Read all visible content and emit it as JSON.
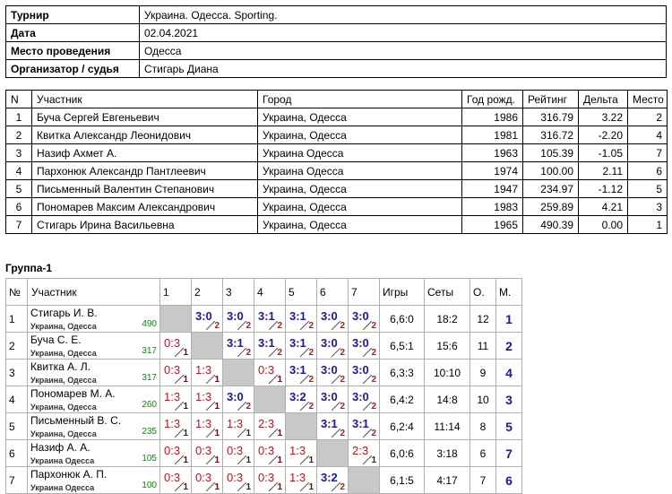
{
  "info": {
    "rows": [
      [
        "Турнир",
        "Украина. Одесса. Sporting."
      ],
      [
        "Дата",
        "02.04.2021"
      ],
      [
        "Место проведения",
        "Одесса"
      ],
      [
        "Организатор / судья",
        "Стигарь Диана"
      ]
    ]
  },
  "players": {
    "header": [
      "N",
      "Участник",
      "Город",
      "Год рожд.",
      "Рейтинг",
      "Дельта",
      "Место"
    ],
    "rows": [
      [
        "1",
        "Буча Сергей Евгеньевич",
        "Украина, Одесса",
        "1986",
        "316.79",
        "3.22",
        "2"
      ],
      [
        "2",
        "Квитка Александр Леонидович",
        "Украина, Одесса",
        "1981",
        "316.72",
        "-2.20",
        "4"
      ],
      [
        "3",
        "Назиф Ахмет А.",
        "Украина Одесса",
        "1963",
        "105.39",
        "-1.05",
        "7"
      ],
      [
        "4",
        "Пархонюк Александр Пантлеевич",
        "Украина Одесса",
        "1974",
        "100.00",
        "2.11",
        "6"
      ],
      [
        "5",
        "Письменный Валентин Степанович",
        "Украина, Одесса",
        "1947",
        "234.97",
        "-1.12",
        "5"
      ],
      [
        "6",
        "Пономарев Максим Александрович",
        "Украина, Одесса",
        "1983",
        "259.89",
        "4.21",
        "3"
      ],
      [
        "7",
        "Стигарь Ирина Васильевна",
        "Украина, Одесса",
        "1965",
        "490.39",
        "0.00",
        "1"
      ]
    ]
  },
  "group": {
    "title": "Группа-1",
    "header": [
      "№",
      "Участник",
      "1",
      "2",
      "3",
      "4",
      "5",
      "6",
      "7",
      "Игры",
      "Сеты",
      "О.",
      "М."
    ],
    "rows": [
      {
        "n": "1",
        "name": "Стигарь И. В.",
        "city": "Украина, Одесса",
        "rating": "490",
        "results": [
          null,
          {
            "score": "3:0",
            "points": "2"
          },
          {
            "score": "3:0",
            "points": "2"
          },
          {
            "score": "3:1",
            "points": "2"
          },
          {
            "score": "3:1",
            "points": "2"
          },
          {
            "score": "3:0",
            "points": "2"
          },
          {
            "score": "3:0",
            "points": "2"
          }
        ],
        "games": "6,6:0",
        "sets": "18:2",
        "total": "12",
        "place": "1"
      },
      {
        "n": "2",
        "name": "Буча С. Е.",
        "city": "Украина, Одесса",
        "rating": "317",
        "results": [
          {
            "score": "0:3",
            "points": "1"
          },
          null,
          {
            "score": "3:1",
            "points": "2"
          },
          {
            "score": "3:1",
            "points": "2"
          },
          {
            "score": "3:1",
            "points": "2"
          },
          {
            "score": "3:0",
            "points": "2"
          },
          {
            "score": "3:0",
            "points": "2"
          }
        ],
        "games": "6,5:1",
        "sets": "15:6",
        "total": "11",
        "place": "2"
      },
      {
        "n": "3",
        "name": "Квитка А. Л.",
        "city": "Украина, Одесса",
        "rating": "317",
        "results": [
          {
            "score": "0:3",
            "points": "1"
          },
          {
            "score": "1:3",
            "points": "1"
          },
          null,
          {
            "score": "0:3",
            "points": "1"
          },
          {
            "score": "3:1",
            "points": "2"
          },
          {
            "score": "3:0",
            "points": "2"
          },
          {
            "score": "3:0",
            "points": "2"
          }
        ],
        "games": "6,3:3",
        "sets": "10:10",
        "total": "9",
        "place": "4"
      },
      {
        "n": "4",
        "name": "Пономарев М. А.",
        "city": "Украина, Одесса",
        "rating": "260",
        "results": [
          {
            "score": "1:3",
            "points": "1"
          },
          {
            "score": "1:3",
            "points": "1"
          },
          {
            "score": "3:0",
            "points": "2"
          },
          null,
          {
            "score": "3:2",
            "points": "2"
          },
          {
            "score": "3:0",
            "points": "2"
          },
          {
            "score": "3:0",
            "points": "2"
          }
        ],
        "games": "6,4:2",
        "sets": "14:8",
        "total": "10",
        "place": "3"
      },
      {
        "n": "5",
        "name": "Письменный В. С.",
        "city": "Украина, Одесса",
        "rating": "235",
        "results": [
          {
            "score": "1:3",
            "points": "1"
          },
          {
            "score": "1:3",
            "points": "1"
          },
          {
            "score": "1:3",
            "points": "1"
          },
          {
            "score": "2:3",
            "points": "1"
          },
          null,
          {
            "score": "3:1",
            "points": "2"
          },
          {
            "score": "3:1",
            "points": "2"
          }
        ],
        "games": "6,2:4",
        "sets": "11:14",
        "total": "8",
        "place": "5"
      },
      {
        "n": "6",
        "name": "Назиф А. А.",
        "city": "Украина Одесса",
        "rating": "105",
        "results": [
          {
            "score": "0:3",
            "points": "1"
          },
          {
            "score": "0:3",
            "points": "1"
          },
          {
            "score": "0:3",
            "points": "1"
          },
          {
            "score": "0:3",
            "points": "1"
          },
          {
            "score": "1:3",
            "points": "1"
          },
          null,
          {
            "score": "2:3",
            "points": "1"
          }
        ],
        "games": "6,0:6",
        "sets": "3:18",
        "total": "6",
        "place": "7"
      },
      {
        "n": "7",
        "name": "Пархонюк А. П.",
        "city": "Украина Одесса",
        "rating": "100",
        "results": [
          {
            "score": "0:3",
            "points": "1"
          },
          {
            "score": "0:3",
            "points": "1"
          },
          {
            "score": "0:3",
            "points": "1"
          },
          {
            "score": "0:3",
            "points": "1"
          },
          {
            "score": "1:3",
            "points": "1"
          },
          {
            "score": "3:2",
            "points": "2"
          },
          null
        ],
        "games": "6,1:5",
        "sets": "4:17",
        "total": "7",
        "place": "6"
      }
    ]
  }
}
